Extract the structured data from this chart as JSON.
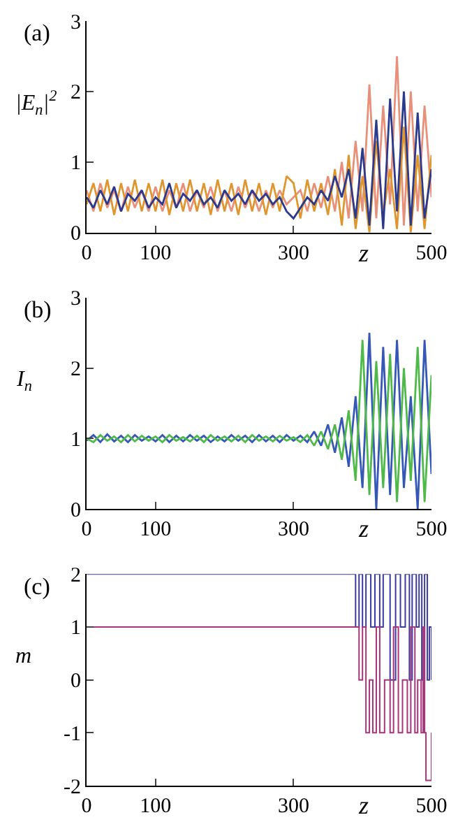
{
  "chart_data": [
    {
      "type": "line",
      "title": "(a)",
      "ylabel": "|E$_{n}$|$^{2}$",
      "xlabel": "z",
      "xlim": [
        0,
        500
      ],
      "xticks": [
        0,
        100,
        300,
        500
      ],
      "ylim": [
        0,
        3
      ],
      "yticks": [
        0,
        1,
        2,
        3
      ],
      "x": [
        0,
        10,
        20,
        30,
        40,
        50,
        60,
        70,
        80,
        90,
        100,
        110,
        120,
        130,
        140,
        150,
        160,
        170,
        180,
        190,
        200,
        210,
        220,
        230,
        240,
        250,
        260,
        270,
        280,
        290,
        300,
        310,
        320,
        330,
        340,
        350,
        360,
        370,
        380,
        390,
        400,
        410,
        420,
        430,
        440,
        450,
        460,
        470,
        480,
        490,
        500
      ],
      "series": [
        {
          "color": "#e8907a",
          "values": [
            0.6,
            0.3,
            0.7,
            0.35,
            0.6,
            0.3,
            0.65,
            0.35,
            0.6,
            0.3,
            0.65,
            0.3,
            0.6,
            0.35,
            0.7,
            0.3,
            0.6,
            0.35,
            0.65,
            0.3,
            0.6,
            0.3,
            0.65,
            0.35,
            0.6,
            0.3,
            0.6,
            0.35,
            0.6,
            0.4,
            0.5,
            0.6,
            0.3,
            0.7,
            0.35,
            0.8,
            0.3,
            1.0,
            0.2,
            1.3,
            0.3,
            2.1,
            0.2,
            1.8,
            0.4,
            2.5,
            0.1,
            2.0,
            0.3,
            1.8,
            0.5
          ]
        },
        {
          "color": "#e0962e",
          "values": [
            0.4,
            0.7,
            0.3,
            0.75,
            0.25,
            0.7,
            0.3,
            0.75,
            0.3,
            0.7,
            0.3,
            0.75,
            0.25,
            0.7,
            0.3,
            0.75,
            0.3,
            0.7,
            0.25,
            0.75,
            0.3,
            0.7,
            0.25,
            0.75,
            0.3,
            0.7,
            0.25,
            0.7,
            0.3,
            0.8,
            0.7,
            0.2,
            0.75,
            0.3,
            0.7,
            0.25,
            0.9,
            0.1,
            1.1,
            0.05,
            0.8,
            0.0,
            1.3,
            0.25,
            0.9,
            0.05,
            1.5,
            0.0,
            1.1,
            0.05,
            1.1
          ]
        },
        {
          "color": "#2b3a8c",
          "values": [
            0.5,
            0.35,
            0.6,
            0.4,
            0.65,
            0.3,
            0.55,
            0.45,
            0.6,
            0.35,
            0.5,
            0.4,
            0.7,
            0.35,
            0.55,
            0.45,
            0.6,
            0.4,
            0.5,
            0.35,
            0.6,
            0.45,
            0.55,
            0.4,
            0.6,
            0.45,
            0.55,
            0.4,
            0.5,
            0.3,
            0.2,
            0.35,
            0.5,
            0.4,
            0.6,
            0.45,
            0.8,
            0.5,
            0.9,
            0.2,
            1.2,
            0.1,
            1.6,
            0.05,
            1.9,
            0.3,
            2.0,
            0.1,
            1.7,
            0.2,
            0.9
          ]
        }
      ]
    },
    {
      "type": "line",
      "title": "(b)",
      "ylabel": "I$_{n}$",
      "xlabel": "z",
      "xlim": [
        0,
        500
      ],
      "xticks": [
        0,
        100,
        300,
        500
      ],
      "ylim": [
        0,
        3
      ],
      "yticks": [
        0,
        1,
        2,
        3
      ],
      "x": [
        0,
        10,
        20,
        30,
        40,
        50,
        60,
        70,
        80,
        90,
        100,
        110,
        120,
        130,
        140,
        150,
        160,
        170,
        180,
        190,
        200,
        210,
        220,
        230,
        240,
        250,
        260,
        270,
        280,
        290,
        300,
        310,
        320,
        330,
        340,
        350,
        360,
        370,
        380,
        390,
        400,
        410,
        420,
        430,
        440,
        450,
        460,
        470,
        480,
        490,
        500
      ],
      "series": [
        {
          "color": "#3557b5",
          "values": [
            0.97,
            1.05,
            0.95,
            1.06,
            0.96,
            1.04,
            0.95,
            1.05,
            0.97,
            1.03,
            0.96,
            1.05,
            0.95,
            1.04,
            0.96,
            1.05,
            0.97,
            1.04,
            0.95,
            1.03,
            0.96,
            1.05,
            0.97,
            1.04,
            0.95,
            1.05,
            0.96,
            1.04,
            0.95,
            1.05,
            0.97,
            1.04,
            0.95,
            1.1,
            0.9,
            1.2,
            0.8,
            1.3,
            0.6,
            1.6,
            0.3,
            2.5,
            0.0,
            2.3,
            0.2,
            2.4,
            0.3,
            1.6,
            0.0,
            2.4,
            0.5
          ]
        },
        {
          "color": "#4fba4a",
          "values": [
            1.0,
            0.95,
            1.05,
            0.97,
            1.03,
            0.95,
            1.05,
            0.96,
            1.04,
            0.97,
            1.03,
            0.95,
            1.05,
            0.97,
            1.02,
            0.96,
            1.04,
            0.95,
            1.05,
            0.97,
            1.03,
            0.96,
            1.04,
            0.95,
            1.05,
            0.97,
            1.03,
            0.96,
            1.04,
            0.97,
            1.02,
            0.95,
            1.05,
            0.9,
            1.1,
            0.85,
            1.2,
            0.7,
            1.4,
            0.4,
            2.4,
            0.2,
            2.1,
            0.3,
            2.2,
            0.1,
            2.0,
            0.4,
            2.3,
            0.1,
            1.9
          ]
        }
      ]
    },
    {
      "type": "step",
      "title": "(c)",
      "ylabel": "m",
      "xlabel": "z",
      "xlim": [
        0,
        500
      ],
      "xticks": [
        0,
        100,
        300,
        500
      ],
      "ylim": [
        -2,
        2
      ],
      "yticks": [
        -2,
        -1,
        0,
        1,
        2
      ],
      "series": [
        {
          "color": "#3a3aa0",
          "x": [
            0,
            390,
            395,
            400,
            405,
            412,
            418,
            425,
            430,
            440,
            448,
            455,
            462,
            468,
            472,
            478,
            482,
            486,
            490,
            494,
            497,
            500
          ],
          "values": [
            2,
            1,
            2,
            1,
            2,
            1,
            2,
            1,
            2,
            0,
            2,
            1,
            2,
            0,
            2,
            1,
            2,
            0,
            2,
            0,
            1,
            0
          ]
        },
        {
          "color": "#a8357a",
          "x": [
            0,
            395,
            400,
            405,
            410,
            415,
            420,
            425,
            432,
            440,
            445,
            452,
            458,
            465,
            470,
            476,
            480,
            485,
            488,
            490,
            492,
            500
          ],
          "values": [
            1,
            0,
            1,
            -1,
            0,
            -1,
            1,
            -1,
            0,
            -1,
            1,
            -1,
            0,
            -1,
            1,
            -1,
            0,
            -1,
            1,
            -1,
            -1.9,
            -1
          ]
        }
      ]
    }
  ]
}
